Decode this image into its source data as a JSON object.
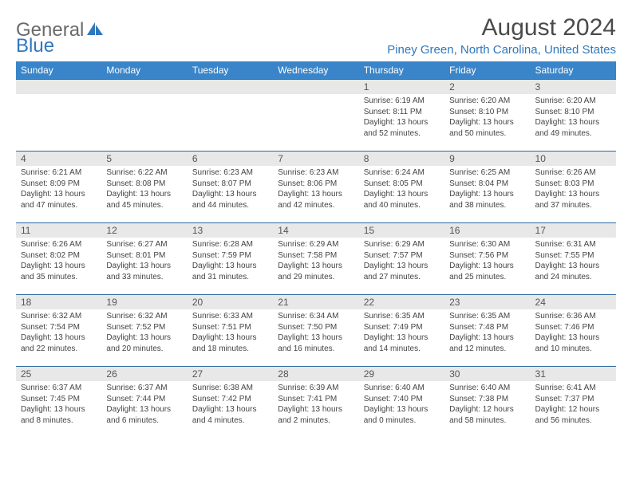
{
  "logo": {
    "general": "General",
    "blue": "Blue"
  },
  "title": "August 2024",
  "location": "Piney Green, North Carolina, United States",
  "colors": {
    "header_bg": "#3a85c9",
    "accent": "#2f78bd",
    "day_bar_bg": "#e8e8e8",
    "day_bar_border": "#2f6aa3",
    "text": "#333333",
    "logo_gray": "#6a6a6a"
  },
  "weekdays": [
    "Sunday",
    "Monday",
    "Tuesday",
    "Wednesday",
    "Thursday",
    "Friday",
    "Saturday"
  ],
  "weeks": [
    [
      null,
      null,
      null,
      null,
      {
        "n": "1",
        "sr": "Sunrise: 6:19 AM",
        "ss": "Sunset: 8:11 PM",
        "d1": "Daylight: 13 hours",
        "d2": "and 52 minutes."
      },
      {
        "n": "2",
        "sr": "Sunrise: 6:20 AM",
        "ss": "Sunset: 8:10 PM",
        "d1": "Daylight: 13 hours",
        "d2": "and 50 minutes."
      },
      {
        "n": "3",
        "sr": "Sunrise: 6:20 AM",
        "ss": "Sunset: 8:10 PM",
        "d1": "Daylight: 13 hours",
        "d2": "and 49 minutes."
      }
    ],
    [
      {
        "n": "4",
        "sr": "Sunrise: 6:21 AM",
        "ss": "Sunset: 8:09 PM",
        "d1": "Daylight: 13 hours",
        "d2": "and 47 minutes."
      },
      {
        "n": "5",
        "sr": "Sunrise: 6:22 AM",
        "ss": "Sunset: 8:08 PM",
        "d1": "Daylight: 13 hours",
        "d2": "and 45 minutes."
      },
      {
        "n": "6",
        "sr": "Sunrise: 6:23 AM",
        "ss": "Sunset: 8:07 PM",
        "d1": "Daylight: 13 hours",
        "d2": "and 44 minutes."
      },
      {
        "n": "7",
        "sr": "Sunrise: 6:23 AM",
        "ss": "Sunset: 8:06 PM",
        "d1": "Daylight: 13 hours",
        "d2": "and 42 minutes."
      },
      {
        "n": "8",
        "sr": "Sunrise: 6:24 AM",
        "ss": "Sunset: 8:05 PM",
        "d1": "Daylight: 13 hours",
        "d2": "and 40 minutes."
      },
      {
        "n": "9",
        "sr": "Sunrise: 6:25 AM",
        "ss": "Sunset: 8:04 PM",
        "d1": "Daylight: 13 hours",
        "d2": "and 38 minutes."
      },
      {
        "n": "10",
        "sr": "Sunrise: 6:26 AM",
        "ss": "Sunset: 8:03 PM",
        "d1": "Daylight: 13 hours",
        "d2": "and 37 minutes."
      }
    ],
    [
      {
        "n": "11",
        "sr": "Sunrise: 6:26 AM",
        "ss": "Sunset: 8:02 PM",
        "d1": "Daylight: 13 hours",
        "d2": "and 35 minutes."
      },
      {
        "n": "12",
        "sr": "Sunrise: 6:27 AM",
        "ss": "Sunset: 8:01 PM",
        "d1": "Daylight: 13 hours",
        "d2": "and 33 minutes."
      },
      {
        "n": "13",
        "sr": "Sunrise: 6:28 AM",
        "ss": "Sunset: 7:59 PM",
        "d1": "Daylight: 13 hours",
        "d2": "and 31 minutes."
      },
      {
        "n": "14",
        "sr": "Sunrise: 6:29 AM",
        "ss": "Sunset: 7:58 PM",
        "d1": "Daylight: 13 hours",
        "d2": "and 29 minutes."
      },
      {
        "n": "15",
        "sr": "Sunrise: 6:29 AM",
        "ss": "Sunset: 7:57 PM",
        "d1": "Daylight: 13 hours",
        "d2": "and 27 minutes."
      },
      {
        "n": "16",
        "sr": "Sunrise: 6:30 AM",
        "ss": "Sunset: 7:56 PM",
        "d1": "Daylight: 13 hours",
        "d2": "and 25 minutes."
      },
      {
        "n": "17",
        "sr": "Sunrise: 6:31 AM",
        "ss": "Sunset: 7:55 PM",
        "d1": "Daylight: 13 hours",
        "d2": "and 24 minutes."
      }
    ],
    [
      {
        "n": "18",
        "sr": "Sunrise: 6:32 AM",
        "ss": "Sunset: 7:54 PM",
        "d1": "Daylight: 13 hours",
        "d2": "and 22 minutes."
      },
      {
        "n": "19",
        "sr": "Sunrise: 6:32 AM",
        "ss": "Sunset: 7:52 PM",
        "d1": "Daylight: 13 hours",
        "d2": "and 20 minutes."
      },
      {
        "n": "20",
        "sr": "Sunrise: 6:33 AM",
        "ss": "Sunset: 7:51 PM",
        "d1": "Daylight: 13 hours",
        "d2": "and 18 minutes."
      },
      {
        "n": "21",
        "sr": "Sunrise: 6:34 AM",
        "ss": "Sunset: 7:50 PM",
        "d1": "Daylight: 13 hours",
        "d2": "and 16 minutes."
      },
      {
        "n": "22",
        "sr": "Sunrise: 6:35 AM",
        "ss": "Sunset: 7:49 PM",
        "d1": "Daylight: 13 hours",
        "d2": "and 14 minutes."
      },
      {
        "n": "23",
        "sr": "Sunrise: 6:35 AM",
        "ss": "Sunset: 7:48 PM",
        "d1": "Daylight: 13 hours",
        "d2": "and 12 minutes."
      },
      {
        "n": "24",
        "sr": "Sunrise: 6:36 AM",
        "ss": "Sunset: 7:46 PM",
        "d1": "Daylight: 13 hours",
        "d2": "and 10 minutes."
      }
    ],
    [
      {
        "n": "25",
        "sr": "Sunrise: 6:37 AM",
        "ss": "Sunset: 7:45 PM",
        "d1": "Daylight: 13 hours",
        "d2": "and 8 minutes."
      },
      {
        "n": "26",
        "sr": "Sunrise: 6:37 AM",
        "ss": "Sunset: 7:44 PM",
        "d1": "Daylight: 13 hours",
        "d2": "and 6 minutes."
      },
      {
        "n": "27",
        "sr": "Sunrise: 6:38 AM",
        "ss": "Sunset: 7:42 PM",
        "d1": "Daylight: 13 hours",
        "d2": "and 4 minutes."
      },
      {
        "n": "28",
        "sr": "Sunrise: 6:39 AM",
        "ss": "Sunset: 7:41 PM",
        "d1": "Daylight: 13 hours",
        "d2": "and 2 minutes."
      },
      {
        "n": "29",
        "sr": "Sunrise: 6:40 AM",
        "ss": "Sunset: 7:40 PM",
        "d1": "Daylight: 13 hours",
        "d2": "and 0 minutes."
      },
      {
        "n": "30",
        "sr": "Sunrise: 6:40 AM",
        "ss": "Sunset: 7:38 PM",
        "d1": "Daylight: 12 hours",
        "d2": "and 58 minutes."
      },
      {
        "n": "31",
        "sr": "Sunrise: 6:41 AM",
        "ss": "Sunset: 7:37 PM",
        "d1": "Daylight: 12 hours",
        "d2": "and 56 minutes."
      }
    ]
  ]
}
